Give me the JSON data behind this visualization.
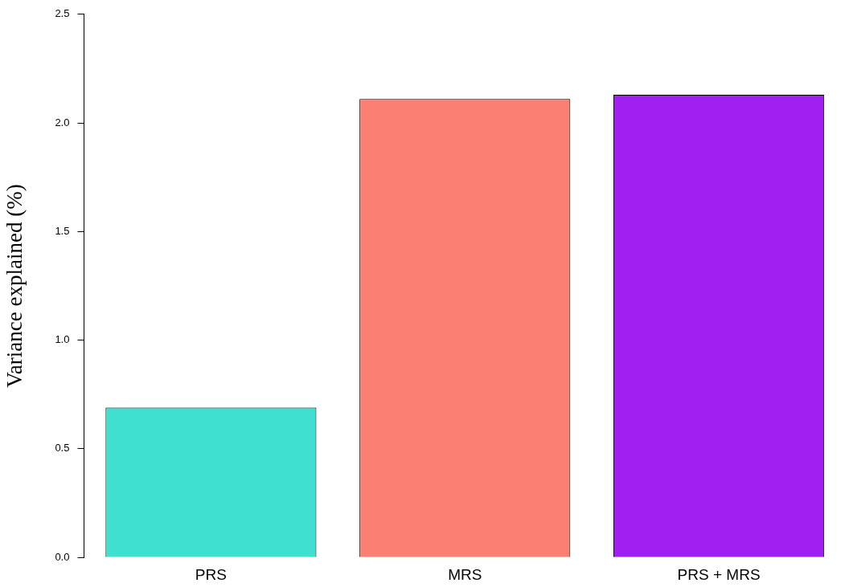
{
  "chart_data": {
    "type": "bar",
    "ylabel": "Variance explained (%)",
    "categories": [
      "PRS",
      "MRS",
      "PRS + MRS"
    ],
    "values": [
      0.69,
      2.11,
      2.13
    ],
    "colors": [
      "#40e0d0",
      "#fa8072",
      "#a020f0"
    ],
    "ylim": [
      0,
      2.5
    ],
    "yticks": [
      {
        "value": 0,
        "label": "0.0"
      },
      0.5,
      {
        "value": 1,
        "label": "1.0"
      },
      1.5,
      {
        "value": 2,
        "label": "2.0"
      },
      2.5
    ],
    "grid": false,
    "legend": false
  }
}
